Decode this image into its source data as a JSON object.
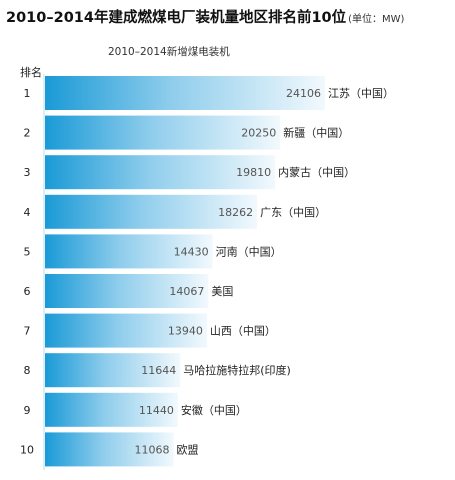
{
  "chart_data": {
    "type": "bar",
    "orientation": "horizontal",
    "title": "2010–2014年建成燃煤电厂装机量地区排名前10位",
    "unit": "(单位：MW)",
    "subtitle": "2010–2014新增煤电装机",
    "rank_header": "排名",
    "ranks": [
      "1",
      "2",
      "3",
      "4",
      "5",
      "6",
      "7",
      "8",
      "9",
      "10"
    ],
    "categories": [
      "江苏（中国）",
      "新疆（中国）",
      "内蒙古（中国）",
      "广东（中国）",
      "河南（中国）",
      "美国",
      "山西（中国）",
      "马哈拉施特拉邦(印度)",
      "安徽（中国）",
      "欧盟"
    ],
    "values": [
      24106,
      20250,
      19810,
      18262,
      14430,
      14067,
      13940,
      11644,
      11440,
      11068
    ],
    "colors": {
      "bar_dark": "#1a9ad6",
      "bar_light": "#f2f9fd",
      "value_text": "#555555"
    }
  }
}
